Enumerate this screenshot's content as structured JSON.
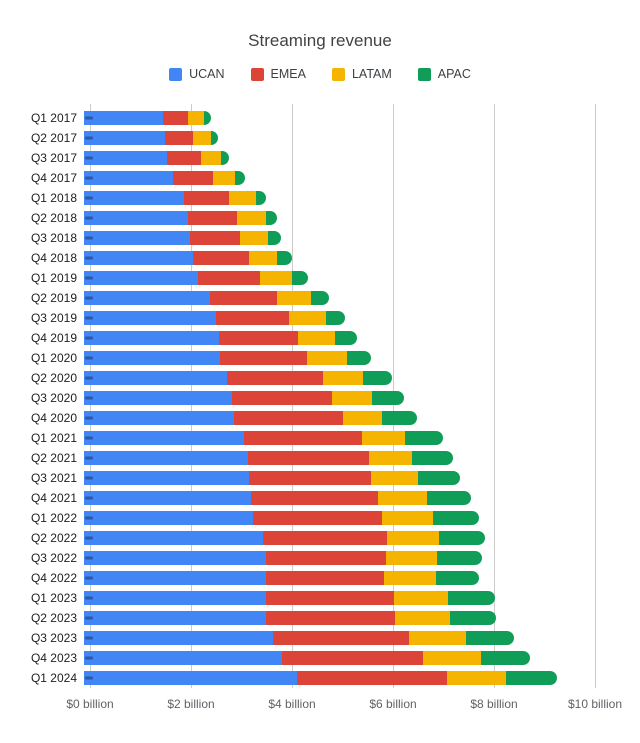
{
  "chart_data": {
    "type": "bar",
    "orientation": "horizontal",
    "stacked": true,
    "title": "Streaming revenue",
    "unit": "USD billions",
    "grid": true,
    "legend_position": "top",
    "categories": [
      "Q1 2017",
      "Q2 2017",
      "Q3 2017",
      "Q4 2017",
      "Q1 2018",
      "Q2 2018",
      "Q3 2018",
      "Q4 2018",
      "Q1 2019",
      "Q2 2019",
      "Q3 2019",
      "Q4 2019",
      "Q1 2020",
      "Q2 2020",
      "Q3 2020",
      "Q4 2020",
      "Q1 2021",
      "Q2 2021",
      "Q3 2021",
      "Q4 2021",
      "Q1 2022",
      "Q2 2022",
      "Q3 2022",
      "Q4 2022",
      "Q1 2023",
      "Q2 2023",
      "Q3 2023",
      "Q4 2023",
      "Q1 2024"
    ],
    "series": [
      {
        "name": "UCAN",
        "color": "#4285F4",
        "values": [
          1.56,
          1.6,
          1.65,
          1.76,
          1.98,
          2.05,
          2.09,
          2.16,
          2.26,
          2.5,
          2.62,
          2.67,
          2.7,
          2.84,
          2.93,
          2.98,
          3.17,
          3.24,
          3.26,
          3.31,
          3.35,
          3.54,
          3.6,
          3.6,
          3.61,
          3.6,
          3.74,
          3.93,
          4.22
        ]
      },
      {
        "name": "EMEA",
        "color": "#DB4437",
        "values": [
          0.5,
          0.56,
          0.66,
          0.79,
          0.89,
          0.98,
          1.0,
          1.1,
          1.23,
          1.32,
          1.43,
          1.56,
          1.72,
          1.89,
          1.98,
          2.14,
          2.34,
          2.4,
          2.43,
          2.52,
          2.56,
          2.46,
          2.38,
          2.35,
          2.52,
          2.56,
          2.69,
          2.78,
          2.96
        ]
      },
      {
        "name": "LATAM",
        "color": "#F4B400",
        "values": [
          0.32,
          0.35,
          0.4,
          0.44,
          0.54,
          0.57,
          0.56,
          0.57,
          0.63,
          0.68,
          0.74,
          0.75,
          0.79,
          0.79,
          0.79,
          0.79,
          0.84,
          0.86,
          0.92,
          0.96,
          1.0,
          1.03,
          1.02,
          1.02,
          1.07,
          1.08,
          1.14,
          1.16,
          1.17
        ]
      },
      {
        "name": "APAC",
        "color": "#0F9D58",
        "values": [
          0.13,
          0.14,
          0.17,
          0.2,
          0.2,
          0.22,
          0.25,
          0.28,
          0.32,
          0.35,
          0.38,
          0.42,
          0.48,
          0.57,
          0.64,
          0.69,
          0.76,
          0.8,
          0.83,
          0.87,
          0.92,
          0.91,
          0.89,
          0.86,
          0.93,
          0.92,
          0.95,
          0.96,
          1.02
        ]
      }
    ],
    "x_axis": {
      "min": 0,
      "max": 10,
      "tick_interval": 2,
      "tick_labels": [
        "$0 billion",
        "$2 billion",
        "$4 billion",
        "$6 billion",
        "$8 billion",
        "$10 billion"
      ]
    }
  }
}
